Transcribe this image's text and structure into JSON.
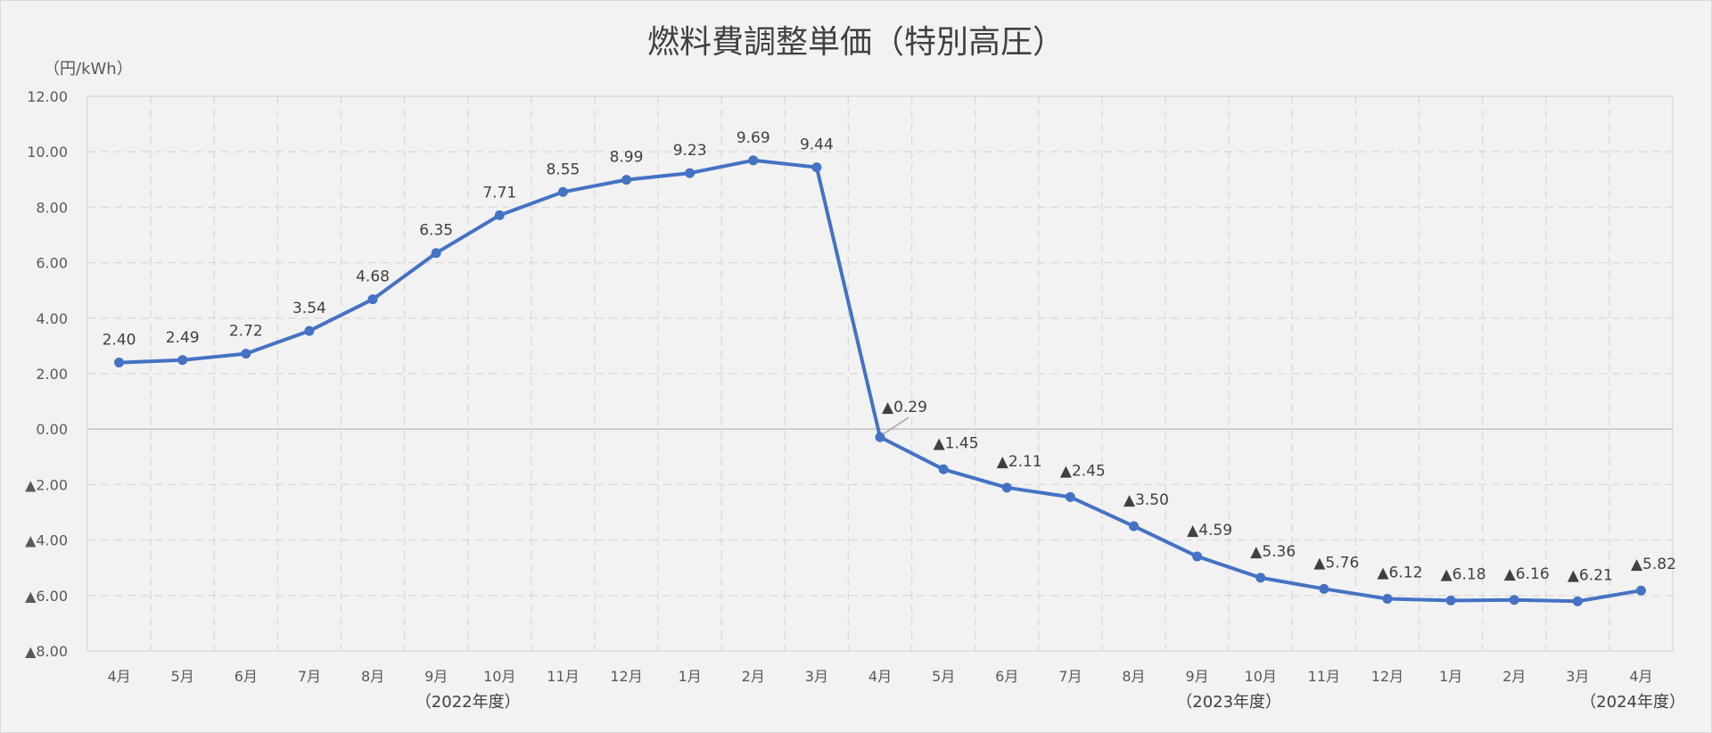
{
  "chart_data": {
    "type": "line",
    "title": "燃料費調整単価（特別高圧）",
    "ylabel": "（円/kWh）",
    "xlabel": "",
    "ylim": [
      -8,
      12
    ],
    "yticks": [
      {
        "value": 12,
        "label": "12.00"
      },
      {
        "value": 10,
        "label": "10.00"
      },
      {
        "value": 8,
        "label": "8.00"
      },
      {
        "value": 6,
        "label": "6.00"
      },
      {
        "value": 4,
        "label": "4.00"
      },
      {
        "value": 2,
        "label": "2.00"
      },
      {
        "value": 0,
        "label": "0.00"
      },
      {
        "value": -2,
        "label": "▲2.00"
      },
      {
        "value": -4,
        "label": "▲4.00"
      },
      {
        "value": -6,
        "label": "▲6.00"
      },
      {
        "value": -8,
        "label": "▲8.00"
      }
    ],
    "grid": true,
    "categories": [
      "4月",
      "5月",
      "6月",
      "7月",
      "8月",
      "9月",
      "10月",
      "11月",
      "12月",
      "1月",
      "2月",
      "3月",
      "4月",
      "5月",
      "6月",
      "7月",
      "8月",
      "9月",
      "10月",
      "11月",
      "12月",
      "1月",
      "2月",
      "3月",
      "4月"
    ],
    "periods": [
      {
        "label": "（2022年度）",
        "first": 0,
        "last": 11
      },
      {
        "label": "（2023年度）",
        "first": 12,
        "last": 23
      },
      {
        "label": "（2024年度）",
        "first": 24,
        "last": 24
      }
    ],
    "series": [
      {
        "color": "#4472c4",
        "values": [
          2.4,
          2.49,
          2.72,
          3.54,
          4.68,
          6.35,
          7.71,
          8.55,
          8.99,
          9.23,
          9.69,
          9.44,
          -0.29,
          -1.45,
          -2.11,
          -2.45,
          -3.5,
          -4.59,
          -5.36,
          -5.76,
          -6.12,
          -6.18,
          -6.16,
          -6.21,
          -5.82
        ],
        "data_labels": [
          "2.40",
          "2.49",
          "2.72",
          "3.54",
          "4.68",
          "6.35",
          "7.71",
          "8.55",
          "8.99",
          "9.23",
          "9.69",
          "9.44",
          "▲0.29",
          "▲1.45",
          "▲2.11",
          "▲2.45",
          "▲3.50",
          "▲4.59",
          "▲5.36",
          "▲5.76",
          "▲6.12",
          "▲6.18",
          "▲6.16",
          "▲6.21",
          "▲5.82"
        ]
      }
    ]
  }
}
